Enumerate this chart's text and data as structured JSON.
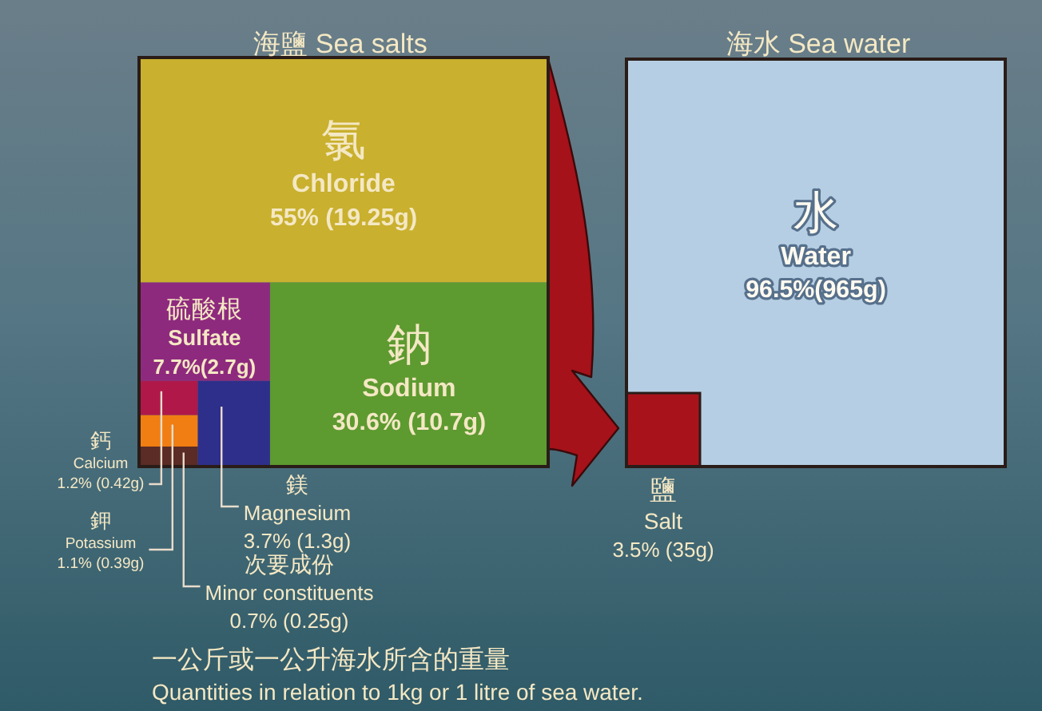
{
  "chart_data": [
    {
      "type": "other",
      "title": "海鹽 Sea salts",
      "categories": [
        "氯\nChloride",
        "鈉\nSodium",
        "硫酸根\nSulfate",
        "鎂\nMagnesium",
        "鈣\nCalcium",
        "鉀\nPotassium",
        "次要成份\nMinor constituents"
      ],
      "values": [
        55,
        30.6,
        7.7,
        3.7,
        1.2,
        1.1,
        0.7
      ],
      "value_labels": [
        "55% (19.25g)",
        "30.6% (10.7g)",
        "7.7%(2.7g)",
        "3.7% (1.3g)",
        "1.2% (0.42g)",
        "1.1% (0.39g)",
        "0.7% (0.25g)"
      ],
      "colors": [
        "#c9b02e",
        "#5d9a30",
        "#8e2a7e",
        "#2e2f8a",
        "#b0184a",
        "#f07e12",
        "#5b2b25"
      ],
      "annotations": [
        "一公斤或一公升海水所含的重量",
        "Quantities in relation to 1kg or 1 litre of sea water."
      ]
    },
    {
      "type": "other",
      "title": "海水 Sea water",
      "categories": [
        "水\nWater",
        "鹽\nSalt"
      ],
      "values": [
        96.5,
        3.5
      ],
      "value_labels": [
        "96.5%(965g)",
        "3.5% (35g)"
      ],
      "colors": [
        "#b6cee3",
        "#a8131b"
      ]
    }
  ]
}
